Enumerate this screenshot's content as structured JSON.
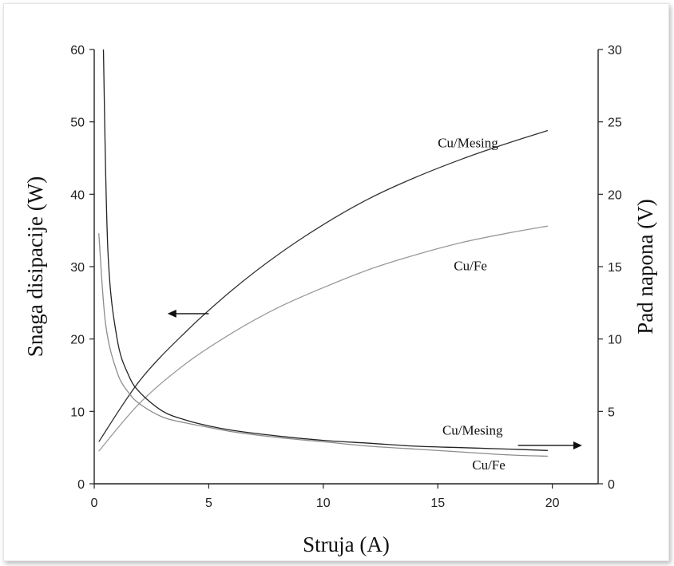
{
  "chart_data": {
    "type": "line",
    "xlabel": "Struja (A)",
    "ylabel_left": "Snaga disipacije (W)",
    "ylabel_right": "Pad napona (V)",
    "xlim": [
      0,
      22
    ],
    "ylim_left": [
      0,
      60
    ],
    "ylim_right": [
      0,
      30
    ],
    "x_ticks": [
      0,
      5,
      10,
      15,
      20
    ],
    "y_ticks_left": [
      0,
      10,
      20,
      30,
      40,
      50,
      60
    ],
    "y_ticks_right": [
      0,
      5,
      10,
      15,
      20,
      25,
      30
    ],
    "grid": false,
    "series": [
      {
        "name": "Cu/Mesing",
        "axis": "left",
        "color": "#333333",
        "x": [
          0.2,
          2,
          4,
          6,
          8,
          10,
          12,
          14,
          16,
          18,
          19.8
        ],
        "y": [
          5.8,
          14.3,
          21.0,
          26.7,
          31.6,
          35.8,
          39.4,
          42.3,
          44.8,
          47.0,
          48.8
        ]
      },
      {
        "name": "Cu/Fe",
        "axis": "left",
        "color": "#9a9a9a",
        "x": [
          0.2,
          2,
          4,
          6,
          8,
          10,
          12,
          14,
          16,
          18,
          19.8
        ],
        "y": [
          4.5,
          11.2,
          16.6,
          20.8,
          24.3,
          27.1,
          29.6,
          31.6,
          33.3,
          34.6,
          35.6
        ]
      },
      {
        "name": "Cu/Mesing",
        "axis": "right",
        "color": "#222222",
        "x": [
          0.4,
          0.6,
          1,
          1.5,
          2,
          3,
          4,
          5,
          6,
          8,
          10,
          12,
          14,
          16,
          18,
          19.8
        ],
        "y": [
          30,
          16.0,
          10.0,
          7.5,
          6.3,
          5.0,
          4.4,
          4.0,
          3.7,
          3.3,
          3.0,
          2.8,
          2.6,
          2.5,
          2.4,
          2.3
        ]
      },
      {
        "name": "Cu/Fe",
        "axis": "right",
        "color": "#8c8c8c",
        "x": [
          0.2,
          0.5,
          1,
          1.5,
          2,
          3,
          4,
          5,
          6,
          8,
          10,
          12,
          14,
          16,
          18,
          19.8
        ],
        "y": [
          17.3,
          11.0,
          7.7,
          6.3,
          5.5,
          4.6,
          4.2,
          3.9,
          3.6,
          3.2,
          2.9,
          2.6,
          2.4,
          2.2,
          2.0,
          1.9
        ]
      }
    ],
    "annotations": [
      {
        "text": "Cu/Mesing",
        "x": 15,
        "y_left": 46.5
      },
      {
        "text": "Cu/Fe",
        "x": 15.7,
        "y_left": 29.5
      },
      {
        "text": "Cu/Mesing",
        "x": 15.2,
        "y_left": 6.8
      },
      {
        "text": "Cu/Fe",
        "x": 16.5,
        "y_left": 2.0
      }
    ],
    "arrows": [
      {
        "direction": "left",
        "x_from": 5.0,
        "x_to": 3.2,
        "y_left": 23.5,
        "meaning": "left axis"
      },
      {
        "direction": "right",
        "x_from": 18.5,
        "x_to": 21.3,
        "y_left": 5.3,
        "meaning": "right axis"
      }
    ]
  }
}
